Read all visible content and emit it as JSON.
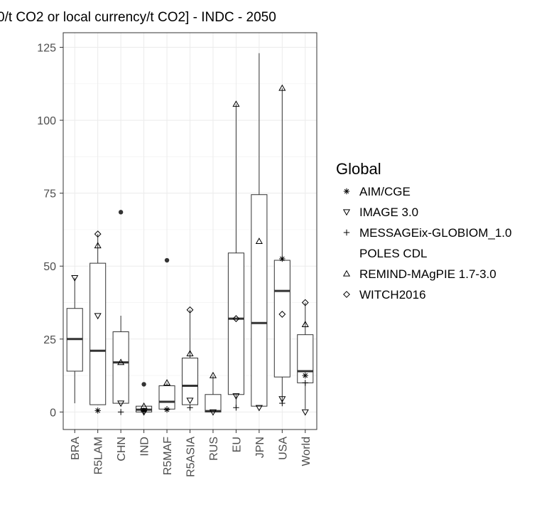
{
  "chart_data": {
    "type": "box",
    "title": "0/t CO2 or local currency/t CO2] - INDC - 2050",
    "xlabel": "",
    "ylabel": "",
    "ylim": [
      -6,
      130
    ],
    "yticks": [
      0,
      25,
      50,
      75,
      100,
      125
    ],
    "grid": true,
    "legend_placement": "right",
    "legend_title": "Global",
    "categories": [
      "BRA",
      "R5LAM",
      "CHN",
      "IND",
      "R5MAF",
      "R5ASIA",
      "RUS",
      "EU",
      "JPN",
      "USA",
      "World"
    ],
    "boxes": [
      {
        "category": "BRA",
        "min": 3,
        "q1": 14,
        "median": 25,
        "q3": 35.5,
        "max": 46
      },
      {
        "category": "R5LAM",
        "min": 2.5,
        "q1": 2.5,
        "median": 21,
        "q3": 51,
        "max": 61
      },
      {
        "category": "CHN",
        "min": 3,
        "q1": 3,
        "median": 17,
        "q3": 27.5,
        "max": 33,
        "outliers": [
          68.5
        ]
      },
      {
        "category": "IND",
        "min": 0,
        "q1": 0,
        "median": 0.8,
        "q3": 2,
        "max": 2,
        "outliers": [
          9.5
        ]
      },
      {
        "category": "R5MAF",
        "min": 1,
        "q1": 1,
        "median": 3.5,
        "q3": 9,
        "max": 10,
        "outliers": [
          52
        ]
      },
      {
        "category": "R5ASIA",
        "min": 1.5,
        "q1": 2.5,
        "median": 9,
        "q3": 18.5,
        "max": 35
      },
      {
        "category": "RUS",
        "min": 0,
        "q1": 0,
        "median": 0.3,
        "q3": 6,
        "max": 12.5
      },
      {
        "category": "EU",
        "min": 1.5,
        "q1": 6,
        "median": 32,
        "q3": 54.5,
        "max": 105.5
      },
      {
        "category": "JPN",
        "min": 2,
        "q1": 2,
        "median": 30.5,
        "q3": 74.5,
        "max": 123
      },
      {
        "category": "USA",
        "min": 3,
        "q1": 12,
        "median": 41.5,
        "q3": 52,
        "max": 111
      },
      {
        "category": "World",
        "min": 1,
        "q1": 10,
        "median": 14,
        "q3": 26.5,
        "max": 37.5
      }
    ],
    "series": [
      {
        "name": "AIM/CGE",
        "shape": "asterisk",
        "values": {
          "R5LAM": 0.5,
          "IND": 0.5,
          "R5MAF": 0.8,
          "USA": 52.5,
          "World": 12.5
        }
      },
      {
        "name": "IMAGE 3.0",
        "shape": "triangle-down",
        "values": {
          "BRA": 46,
          "R5LAM": 33,
          "CHN": 3,
          "IND": 0,
          "R5ASIA": 4,
          "RUS": 0,
          "EU": 5.5,
          "JPN": 1.5,
          "USA": 4.5,
          "World": 0
        }
      },
      {
        "name": "MESSAGEix-GLOBIOM_1.0",
        "shape": "plus",
        "values": {
          "CHN": 0,
          "IND": 0.3,
          "R5MAF": 1,
          "R5ASIA": 1.5,
          "EU": 1.5,
          "USA": 3,
          "World": 10
        }
      },
      {
        "name": "POLES CDL",
        "shape": "none",
        "values": {}
      },
      {
        "name": "REMIND-MAgPIE 1.7-3.0",
        "shape": "triangle-up",
        "values": {
          "R5LAM": 57,
          "CHN": 17,
          "IND": 2,
          "R5MAF": 10,
          "R5ASIA": 20,
          "RUS": 12.5,
          "EU": 105.5,
          "JPN": 58.5,
          "USA": 111,
          "World": 30
        }
      },
      {
        "name": "WITCH2016",
        "shape": "diamond",
        "values": {
          "R5LAM": 61,
          "R5ASIA": 35,
          "EU": 32,
          "USA": 33.5,
          "World": 37.5
        }
      }
    ],
    "outlier_marks": {
      "CHN": 68.5,
      "IND": 9.5,
      "R5MAF": 52
    }
  }
}
